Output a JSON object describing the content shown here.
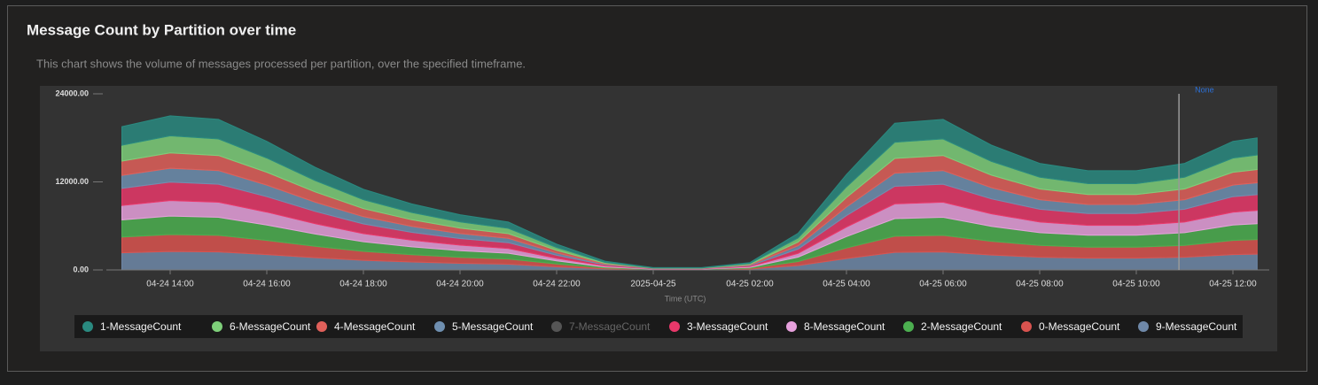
{
  "header": {
    "title": "Message Count by Partition over time",
    "subtitle": "This chart shows the volume of messages processed per partition, over the specified timeframe."
  },
  "chart_data": {
    "type": "stacked-area",
    "x_label": "Time (UTC)",
    "x": [
      "04-24 13:00",
      "04-24 14:00",
      "04-24 15:00",
      "04-24 16:00",
      "04-24 17:00",
      "04-24 18:00",
      "04-24 19:00",
      "04-24 20:00",
      "04-24 21:00",
      "04-24 22:00",
      "04-24 23:00",
      "04-25 00:00",
      "04-25 01:00",
      "04-25 02:00",
      "04-25 03:00",
      "04-25 04:00",
      "04-25 05:00",
      "04-25 06:00",
      "04-25 07:00",
      "04-25 08:00",
      "04-25 09:00",
      "04-25 10:00",
      "04-25 11:00",
      "04-25 12:00",
      "04-25 12:30"
    ],
    "xticks": [
      "04-24 14:00",
      "04-24 16:00",
      "04-24 18:00",
      "04-24 20:00",
      "04-24 22:00",
      {
        "value": "04-25 00:00",
        "label": "2025-04-25"
      },
      "04-25 02:00",
      "04-25 04:00",
      "04-25 06:00",
      "04-25 08:00",
      "04-25 10:00",
      "04-25 12:00"
    ],
    "ylim": [
      0,
      24000
    ],
    "yticks": [
      {
        "value": 0,
        "label": "0.00"
      },
      {
        "value": 12000,
        "label": "12000.00"
      },
      {
        "value": 24000,
        "label": "24000.00"
      }
    ],
    "grid": false,
    "annotation": {
      "x": "04-25 10:53",
      "label": "None"
    },
    "series": [
      {
        "name": "1-MessageCount",
        "color": "#2a8a80",
        "values": [
          2540,
          2730,
          2670,
          2280,
          1820,
          1430,
          1170,
          980,
          850,
          460,
          160,
          40,
          40,
          130,
          650,
          1690,
          2600,
          2670,
          2210,
          1890,
          1760,
          1760,
          1890,
          2280,
          2340
        ]
      },
      {
        "name": "6-MessageCount",
        "color": "#7ecf7a",
        "values": [
          2150,
          2310,
          2260,
          1930,
          1540,
          1210,
          990,
          830,
          720,
          390,
          130,
          30,
          30,
          110,
          550,
          1430,
          2200,
          2260,
          1870,
          1600,
          1490,
          1490,
          1600,
          1930,
          1980
        ]
      },
      {
        "name": "4-MessageCount",
        "color": "#e0605a",
        "values": [
          1950,
          2100,
          2050,
          1750,
          1400,
          1100,
          900,
          750,
          650,
          350,
          120,
          30,
          30,
          100,
          500,
          1300,
          2000,
          2050,
          1700,
          1450,
          1350,
          1350,
          1450,
          1750,
          1800
        ]
      },
      {
        "name": "5-MessageCount",
        "color": "#6f8fb0",
        "values": [
          1760,
          1890,
          1850,
          1580,
          1260,
          990,
          810,
          680,
          590,
          320,
          110,
          30,
          30,
          90,
          450,
          1170,
          1800,
          1850,
          1530,
          1310,
          1220,
          1220,
          1310,
          1580,
          1620
        ]
      },
      {
        "name": "7-MessageCount",
        "color": "#555555",
        "visible": false
      },
      {
        "name": "3-MessageCount",
        "color": "#e8386a",
        "values": [
          2340,
          2520,
          2460,
          2100,
          1680,
          1320,
          1080,
          900,
          780,
          420,
          140,
          40,
          40,
          120,
          600,
          1560,
          2400,
          2460,
          2040,
          1740,
          1620,
          1620,
          1740,
          2100,
          2160
        ]
      },
      {
        "name": "8-MessageCount",
        "color": "#e6a0dc",
        "values": [
          1950,
          2100,
          2050,
          1750,
          1400,
          1100,
          900,
          750,
          650,
          350,
          120,
          30,
          30,
          100,
          500,
          1300,
          2000,
          2050,
          1700,
          1450,
          1350,
          1350,
          1450,
          1750,
          1800
        ]
      },
      {
        "name": "2-MessageCount",
        "color": "#4caf50",
        "values": [
          2340,
          2520,
          2460,
          2100,
          1680,
          1320,
          1080,
          900,
          780,
          420,
          140,
          40,
          40,
          120,
          600,
          1560,
          2400,
          2460,
          2040,
          1740,
          1620,
          1620,
          1740,
          2100,
          2160
        ]
      },
      {
        "name": "0-MessageCount",
        "color": "#d9534f",
        "values": [
          2150,
          2310,
          2260,
          1930,
          1540,
          1210,
          990,
          830,
          720,
          390,
          130,
          30,
          30,
          110,
          550,
          1430,
          2200,
          2260,
          1870,
          1600,
          1490,
          1490,
          1600,
          1930,
          1980
        ]
      },
      {
        "name": "9-MessageCount",
        "color": "#6f88a8",
        "values": [
          2340,
          2520,
          2460,
          2100,
          1680,
          1320,
          1080,
          900,
          780,
          420,
          140,
          40,
          40,
          120,
          600,
          1560,
          2400,
          2460,
          2040,
          1740,
          1620,
          1620,
          1740,
          2100,
          2160
        ]
      }
    ]
  }
}
